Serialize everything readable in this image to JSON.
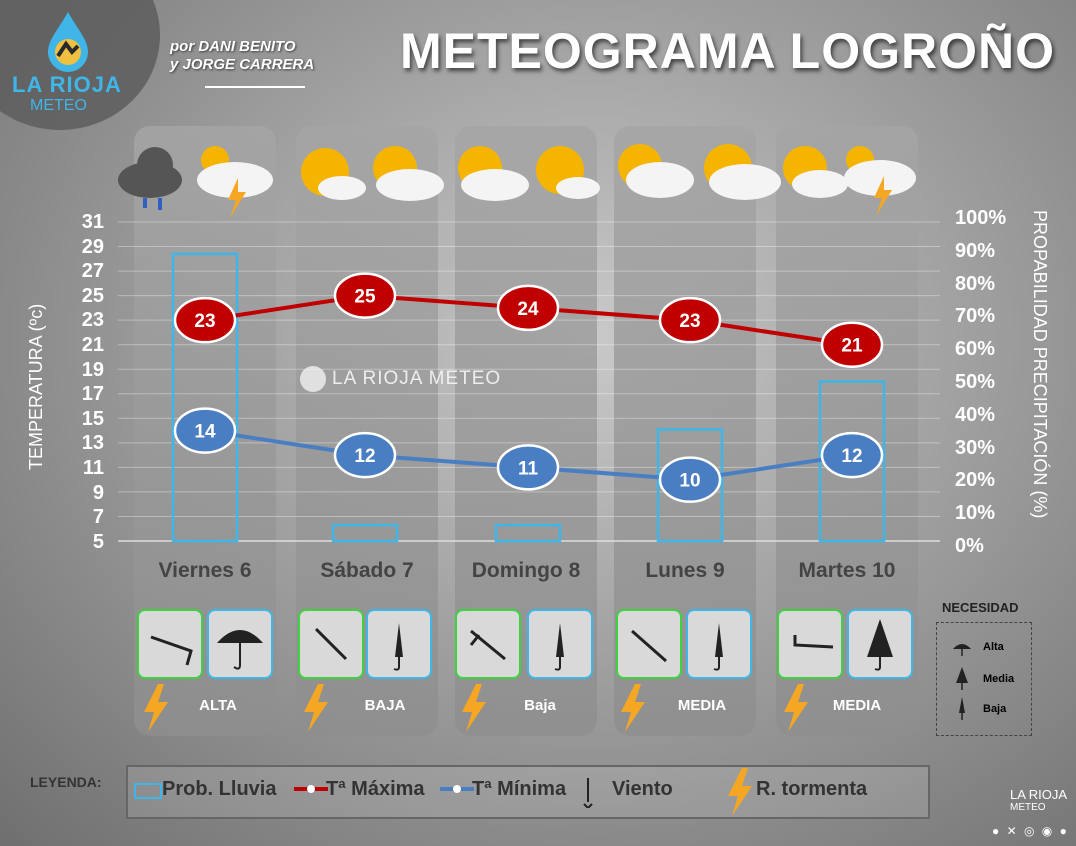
{
  "header": {
    "title": "METEOGRAMA LOGROÑO",
    "authors_line1": "por DANI BENITO",
    "authors_line2": "y JORGE CARRERA",
    "logo_line1": "LA RIOJA",
    "logo_line2": "METEO",
    "watermark": "LA RIOJA METEO"
  },
  "axes": {
    "left_label": "TEMPERATURA (ºc)",
    "right_label": "PROPABILIDAD PRECIPITACIÓN (%)",
    "left_ticks": [
      "31",
      "29",
      "27",
      "25",
      "23",
      "21",
      "19",
      "17",
      "15",
      "13",
      "11",
      "9",
      "7",
      "5"
    ],
    "right_ticks": [
      "100%",
      "90%",
      "80%",
      "70%",
      "60%",
      "50%",
      "40%",
      "30%",
      "20%",
      "10%",
      "0%"
    ]
  },
  "days": [
    {
      "name": "Viernes 6",
      "need": "ALTA"
    },
    {
      "name": "Sábado 7",
      "need": "BAJA"
    },
    {
      "name": "Domingo 8",
      "need": "Baja"
    },
    {
      "name": "Lunes 9",
      "need": "MEDIA"
    },
    {
      "name": "Martes 10",
      "need": "MEDIA"
    }
  ],
  "necesidad": {
    "title": "NECESIDAD",
    "items": [
      "Alta",
      "Media",
      "Baja"
    ]
  },
  "legend": {
    "title": "LEYENDA:",
    "rain": "Prob. Lluvia",
    "tmax": "Tª Máxima",
    "tmin": "Tª Mínima",
    "wind": "Viento",
    "storm": "R. tormenta"
  },
  "colors": {
    "tmax": "#c00000",
    "tmin": "#4a7ec2",
    "rain": "#3fb5e8",
    "storm": "#f5a623"
  },
  "chart_data": {
    "type": "line",
    "categories": [
      "Viernes 6",
      "Sábado 7",
      "Domingo 8",
      "Lunes 9",
      "Martes 10"
    ],
    "series": [
      {
        "name": "Tª Máxima",
        "axis": "left",
        "values": [
          23,
          25,
          24,
          23,
          21
        ]
      },
      {
        "name": "Tª Mínima",
        "axis": "left",
        "values": [
          14,
          12,
          11,
          10,
          12
        ]
      },
      {
        "name": "Prob. Lluvia",
        "type": "bar",
        "axis": "right",
        "values": [
          90,
          5,
          5,
          35,
          50
        ]
      }
    ],
    "ylim": [
      5,
      31
    ],
    "y2lim": [
      0,
      100
    ]
  }
}
